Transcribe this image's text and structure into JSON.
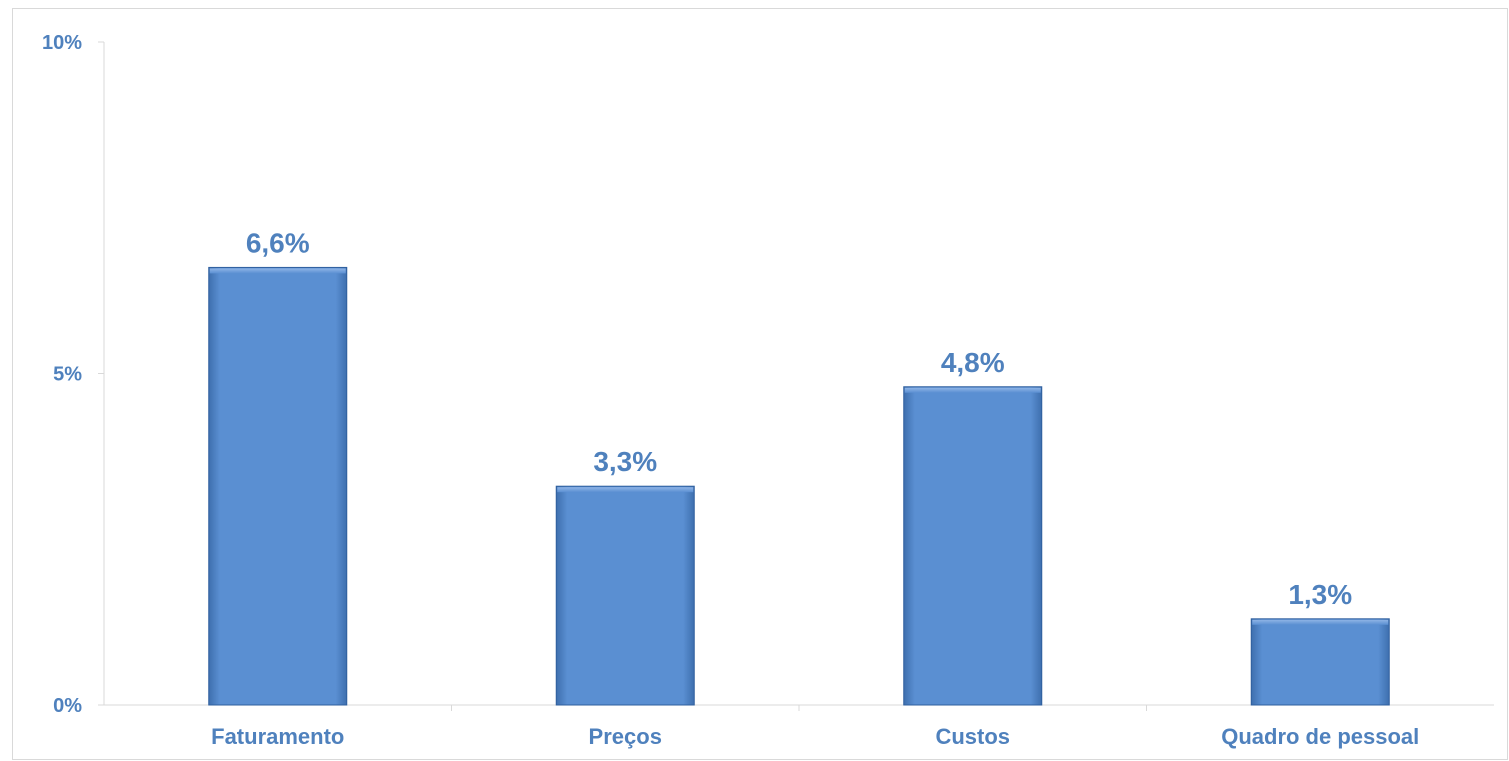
{
  "chart_data": {
    "type": "bar",
    "title": "",
    "xlabel": "",
    "ylabel": "",
    "categories": [
      "Faturamento",
      "Preços",
      "Custos",
      "Quadro de pessoal"
    ],
    "values": [
      6.6,
      3.3,
      4.8,
      1.3
    ],
    "data_labels": [
      "6,6%",
      "3,3%",
      "4,8%",
      "1,3%"
    ],
    "ylim": [
      0,
      10
    ],
    "yticks": [
      0,
      5,
      10
    ],
    "ytick_labels": [
      "0%",
      "5%",
      "10%"
    ],
    "grid": false,
    "legend": "none",
    "colors": {
      "bar": "#5588cc",
      "bar_dark": "#2f5f9e",
      "text": "#4f81bd",
      "axis": "#d9d9d9"
    }
  }
}
